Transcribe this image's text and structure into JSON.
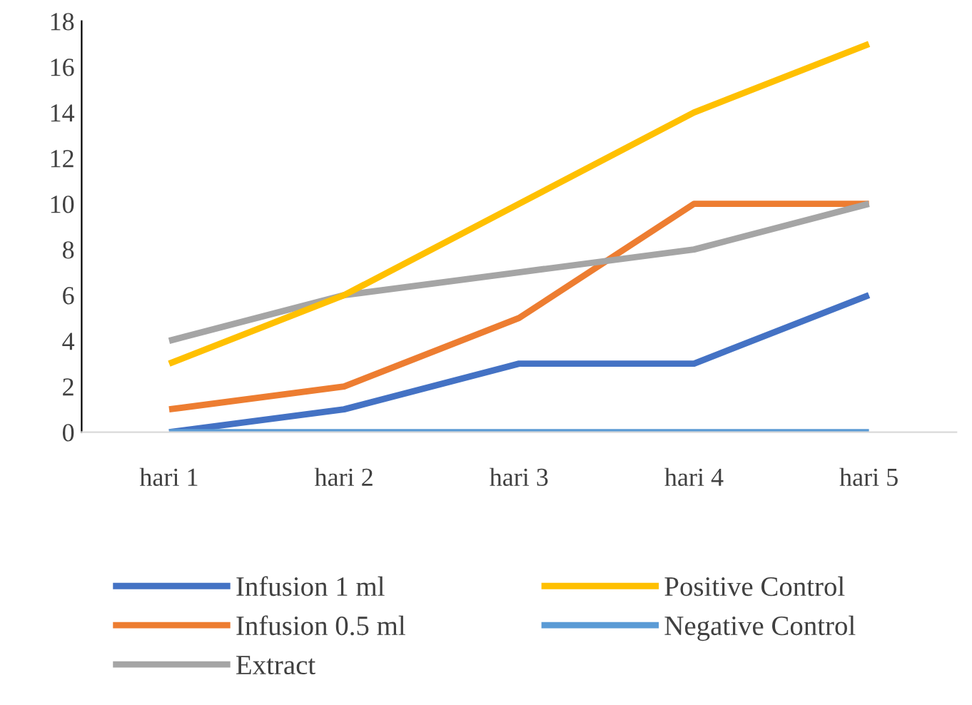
{
  "chart_data": {
    "type": "line",
    "categories": [
      "hari 1",
      "hari 2",
      "hari 3",
      "hari 4",
      "hari 5"
    ],
    "series": [
      {
        "name": "Infusion 1 ml",
        "color": "#4472c4",
        "values": [
          0,
          1,
          3,
          3,
          6
        ]
      },
      {
        "name": "Infusion 0.5 ml",
        "color": "#ed7d31",
        "values": [
          1,
          2,
          5,
          10,
          10
        ]
      },
      {
        "name": "Extract",
        "color": "#a5a5a5",
        "values": [
          4,
          6,
          7,
          8,
          10
        ]
      },
      {
        "name": "Positive Control",
        "color": "#ffc000",
        "values": [
          3,
          6,
          10,
          14,
          17
        ]
      },
      {
        "name": "Negative Control",
        "color": "#5b9bd5",
        "values": [
          0,
          0,
          0,
          0,
          0
        ]
      }
    ],
    "ylim": [
      0,
      18
    ],
    "yticks": [
      0,
      2,
      4,
      6,
      8,
      10,
      12,
      14,
      16,
      18
    ],
    "grid": false,
    "legend": "bottom",
    "marker": "none",
    "line_style": "solid"
  }
}
